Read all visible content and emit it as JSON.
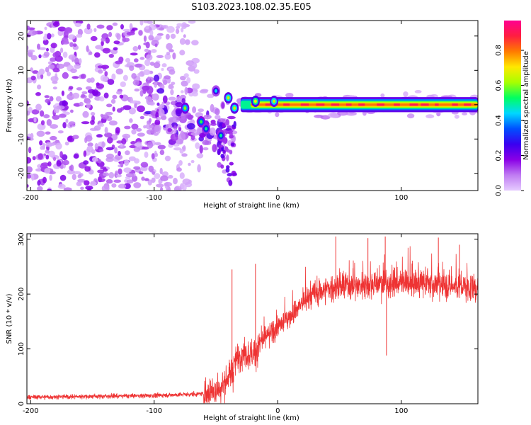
{
  "title": "S103.2023.108.02.35.E05",
  "chart_data": [
    {
      "type": "heatmap",
      "xlabel": "Height of straight line (km)",
      "ylabel": "Frequency (Hz)",
      "xlim": [
        -203,
        162
      ],
      "ylim": [
        -25,
        24.5
      ],
      "xticks": [
        -200,
        -100,
        0,
        100
      ],
      "yticks": [
        -20,
        -10,
        0,
        10,
        20
      ],
      "colorbar": {
        "label": "Normalized spectral amplitude",
        "range": [
          0.0,
          0.97
        ],
        "ticks": [
          0.0,
          0.2,
          0.4,
          0.6,
          0.8
        ],
        "tick_labels": [
          "0.0",
          "0.2",
          "0.4",
          "0.6",
          "0.8"
        ],
        "colors": [
          "#e6ccff",
          "#c07cf2",
          "#8a00e6",
          "#3a00f0",
          "#0050ff",
          "#00d8ff",
          "#00ff60",
          "#a8ff00",
          "#ffe800",
          "#ff7a00",
          "#ff1e40",
          "#ff0090"
        ]
      },
      "features": {
        "noise_region_x": [
          -203,
          -65
        ],
        "signal_band": {
          "x_start": -30,
          "x_end": 162,
          "freq_center": 0,
          "amplitude": 0.8
        },
        "transition_blobs": [
          {
            "x": -75,
            "f": -1,
            "a": 0.4
          },
          {
            "x": -62,
            "f": -5,
            "a": 0.35
          },
          {
            "x": -58,
            "f": -7,
            "a": 0.3
          },
          {
            "x": -50,
            "f": 4,
            "a": 0.25
          },
          {
            "x": -46,
            "f": -9,
            "a": 0.3
          },
          {
            "x": -40,
            "f": 2,
            "a": 0.45
          },
          {
            "x": -35,
            "f": -1,
            "a": 0.45
          },
          {
            "x": -18,
            "f": 1,
            "a": 0.5
          },
          {
            "x": -3,
            "f": 1,
            "a": 0.45
          }
        ]
      }
    },
    {
      "type": "line",
      "xlabel": "Height of straight line (km)",
      "ylabel": "SNR (10 * v/v)",
      "xlim": [
        -203,
        162
      ],
      "ylim": [
        0,
        310
      ],
      "xticks": [
        -200,
        -100,
        0,
        100
      ],
      "yticks": [
        0,
        100,
        200,
        300
      ],
      "color": "#ee3333",
      "trend": {
        "x": [
          -203,
          -100,
          -60,
          -45,
          -38,
          -30,
          -20,
          -10,
          0,
          10,
          20,
          30,
          40,
          60,
          80,
          100,
          120,
          140,
          162
        ],
        "y": [
          12,
          15,
          18,
          30,
          55,
          95,
          90,
          120,
          140,
          160,
          185,
          200,
          210,
          215,
          220,
          220,
          220,
          215,
          210
        ]
      },
      "spikes": [
        {
          "x": -37,
          "y": 245
        },
        {
          "x": -18,
          "y": 255
        },
        {
          "x": 47,
          "y": 305
        },
        {
          "x": 73,
          "y": 302
        },
        {
          "x": 87,
          "y": 305
        },
        {
          "x": 88,
          "y": 88
        },
        {
          "x": 130,
          "y": 303
        },
        {
          "x": 147,
          "y": 290
        }
      ]
    }
  ]
}
